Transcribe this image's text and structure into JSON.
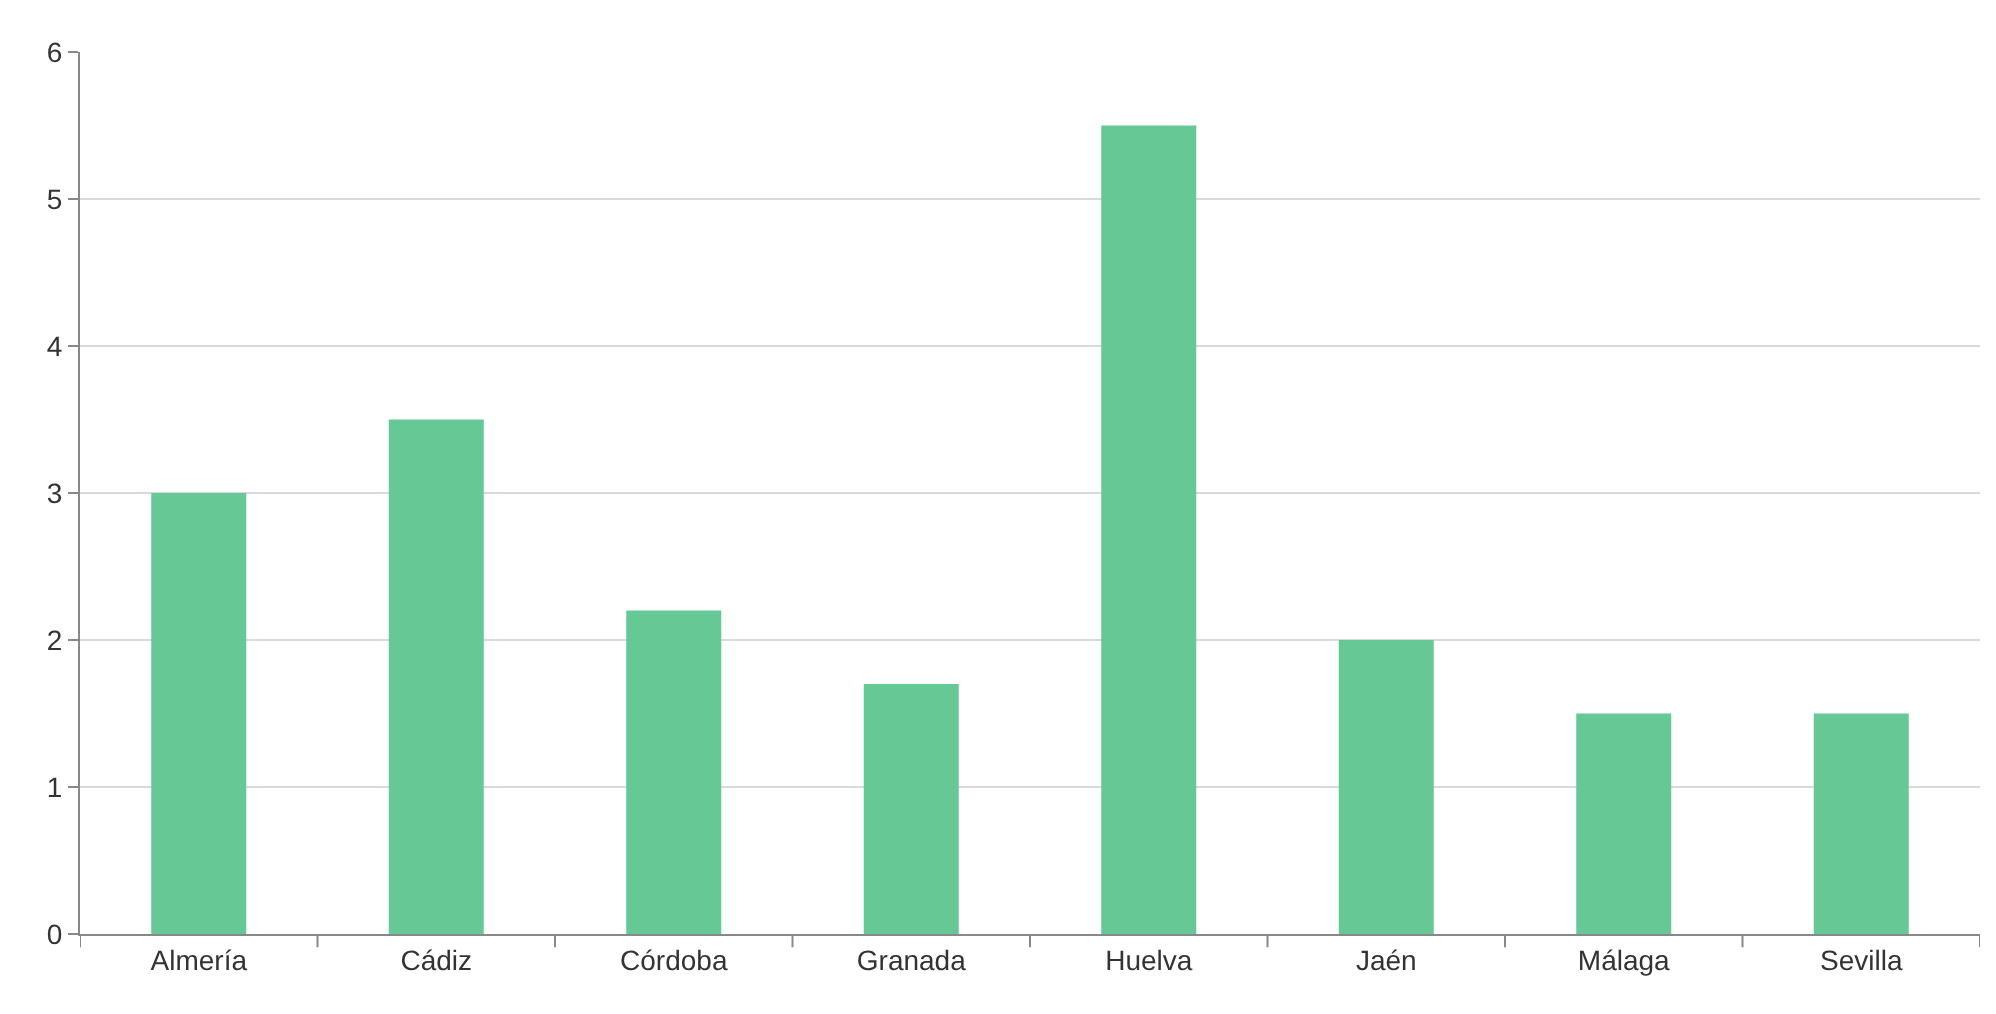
{
  "chart_data": {
    "type": "bar",
    "categories": [
      "Almería",
      "Cádiz",
      "Córdoba",
      "Granada",
      "Huelva",
      "Jaén",
      "Málaga",
      "Sevilla"
    ],
    "values": [
      3,
      3.5,
      2.2,
      1.7,
      5.5,
      2,
      1.5,
      1.5
    ],
    "color": "#66c995",
    "ylim": [
      0,
      6
    ],
    "yticks": [
      0,
      1,
      2,
      3,
      4,
      5,
      6
    ],
    "grid": "y",
    "legend": false
  }
}
